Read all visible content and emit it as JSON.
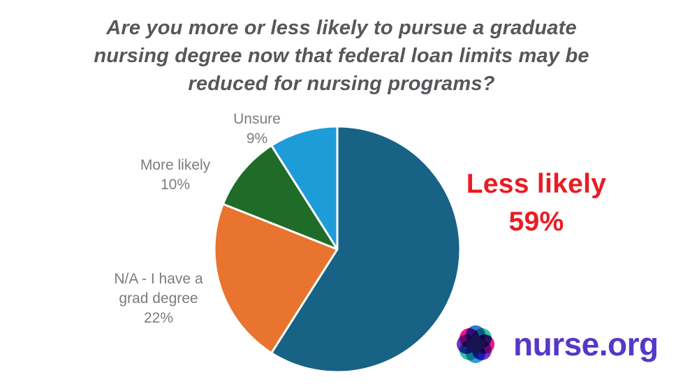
{
  "title": {
    "text": "Are you more or less likely to pursue a graduate\nnursing degree now that federal loan limits may be\nreduced for nursing programs?",
    "color": "#57575B"
  },
  "chart_data": {
    "type": "pie",
    "title": "Are you more or less likely to pursue a graduate nursing degree now that federal loan limits may be reduced for nursing programs?",
    "start_angle_deg": 0,
    "direction": "clockwise",
    "slice_border_color": "#FFFFFF",
    "legend_position": "none",
    "label_style": "outside callouts",
    "slices": [
      {
        "label": "Less likely",
        "value_pct": 59,
        "color": "#176285",
        "emphasized": true
      },
      {
        "label": "N/A - I have a grad degree",
        "value_pct": 22,
        "color": "#E8742F",
        "emphasized": false
      },
      {
        "label": "More likely",
        "value_pct": 10,
        "color": "#1F6B28",
        "emphasized": false
      },
      {
        "label": "Unsure",
        "value_pct": 9,
        "color": "#1E9CD8",
        "emphasized": false
      }
    ]
  },
  "callouts": {
    "unsure": "Unsure\n9%",
    "more_likely": "More likely\n10%",
    "na_grad_degree": "N/A - I have a\ngrad degree\n22%",
    "less_likely": "Less likely\n59%",
    "text_color": "#7C7C80",
    "emphasis_color": "#EA1B23"
  },
  "logo": {
    "text": "nurse.org",
    "text_color": "#5438C8",
    "center_color": "#1A1150",
    "petal_colors": [
      "#3B76D2",
      "#2EC4A4",
      "#E8188C",
      "#7233C7",
      "#2E9BDB",
      "#2EC4A4",
      "#7233C7",
      "#E8188C"
    ]
  }
}
